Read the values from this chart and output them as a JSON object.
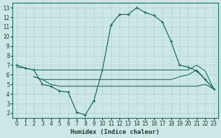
{
  "title": "",
  "xlabel": "Humidex (Indice chaleur)",
  "ylabel": "",
  "bg_color": "#cce8e4",
  "line_color": "#1a6b5e",
  "grid_color": "#b8d8d4",
  "xlim": [
    -0.5,
    23.5
  ],
  "ylim": [
    1.5,
    13.5
  ],
  "xticks": [
    0,
    1,
    2,
    3,
    4,
    5,
    6,
    7,
    8,
    9,
    10,
    11,
    12,
    13,
    14,
    15,
    16,
    17,
    18,
    19,
    20,
    21,
    22,
    23
  ],
  "yticks": [
    2,
    3,
    4,
    5,
    6,
    7,
    8,
    9,
    10,
    11,
    12,
    13
  ],
  "series": [
    {
      "x": [
        0,
        1,
        2,
        3,
        4,
        5,
        6,
        7,
        8,
        9,
        10,
        11,
        12,
        13,
        14,
        15,
        16,
        17,
        18,
        19,
        20,
        21,
        22,
        23
      ],
      "y": [
        7.0,
        6.7,
        6.5,
        5.0,
        4.8,
        4.3,
        4.2,
        2.1,
        1.8,
        3.3,
        6.5,
        11.2,
        12.3,
        12.3,
        13.0,
        12.5,
        12.2,
        11.5,
        9.5,
        7.0,
        6.8,
        6.4,
        5.5,
        4.5
      ],
      "markers": true
    },
    {
      "x": [
        0,
        1,
        2,
        3,
        4,
        5,
        6,
        7,
        8,
        9,
        10,
        11,
        12,
        13,
        14,
        15,
        16,
        17,
        18,
        19,
        20,
        21,
        22,
        23
      ],
      "y": [
        6.8,
        6.7,
        6.5,
        6.5,
        6.5,
        6.5,
        6.5,
        6.5,
        6.5,
        6.5,
        6.5,
        6.5,
        6.5,
        6.5,
        6.5,
        6.5,
        6.5,
        6.5,
        6.5,
        6.5,
        6.5,
        7.0,
        6.4,
        4.5
      ],
      "markers": false
    },
    {
      "x": [
        2,
        3,
        4,
        5,
        6,
        7,
        8,
        9,
        10,
        11,
        12,
        13,
        14,
        15,
        16,
        17,
        18,
        19,
        20,
        21,
        22,
        23
      ],
      "y": [
        5.8,
        5.5,
        5.5,
        5.5,
        5.5,
        5.5,
        5.5,
        5.5,
        5.5,
        5.5,
        5.5,
        5.5,
        5.5,
        5.5,
        5.5,
        5.5,
        5.5,
        5.8,
        6.0,
        6.5,
        5.5,
        4.5
      ],
      "markers": false
    },
    {
      "x": [
        2,
        3,
        4,
        5,
        6,
        7,
        8,
        9,
        10,
        11,
        12,
        13,
        14,
        15,
        16,
        17,
        18,
        19,
        20,
        21,
        22,
        23
      ],
      "y": [
        5.8,
        5.5,
        5.0,
        4.8,
        4.8,
        4.8,
        4.8,
        4.8,
        4.8,
        4.8,
        4.8,
        4.8,
        4.8,
        4.8,
        4.8,
        4.8,
        4.8,
        4.8,
        4.8,
        4.8,
        5.0,
        4.5
      ],
      "markers": false
    }
  ]
}
